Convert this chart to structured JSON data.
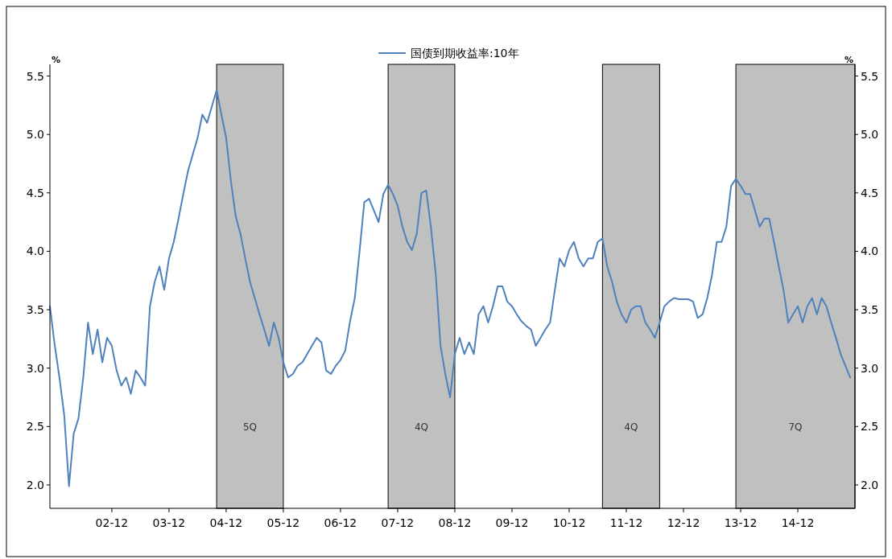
{
  "chart_data": {
    "type": "line",
    "x": [
      "2001-11",
      "2001-12",
      "2002-01",
      "2002-02",
      "2002-03",
      "2002-04",
      "2002-05",
      "2002-06",
      "2002-07",
      "2002-08",
      "2002-09",
      "2002-10",
      "2002-11",
      "2002-12",
      "2003-01",
      "2003-02",
      "2003-03",
      "2003-04",
      "2003-05",
      "2003-06",
      "2003-07",
      "2003-08",
      "2003-09",
      "2003-10",
      "2003-11",
      "2003-12",
      "2004-01",
      "2004-02",
      "2004-03",
      "2004-04",
      "2004-05",
      "2004-06",
      "2004-07",
      "2004-08",
      "2004-09",
      "2004-10",
      "2004-11",
      "2004-12",
      "2005-01",
      "2005-02",
      "2005-03",
      "2005-04",
      "2005-05",
      "2005-06",
      "2005-07",
      "2005-08",
      "2005-09",
      "2005-10",
      "2005-11",
      "2005-12",
      "2006-01",
      "2006-02",
      "2006-03",
      "2006-04",
      "2006-05",
      "2006-06",
      "2006-07",
      "2006-08",
      "2006-09",
      "2006-10",
      "2006-11",
      "2006-12",
      "2007-01",
      "2007-02",
      "2007-03",
      "2007-04",
      "2007-05",
      "2007-06",
      "2007-07",
      "2007-08",
      "2007-09",
      "2007-10",
      "2007-11",
      "2007-12",
      "2008-01",
      "2008-02",
      "2008-03",
      "2008-04",
      "2008-05",
      "2008-06",
      "2008-07",
      "2008-08",
      "2008-09",
      "2008-10",
      "2008-11",
      "2008-12",
      "2009-01",
      "2009-02",
      "2009-03",
      "2009-04",
      "2009-05",
      "2009-06",
      "2009-07",
      "2009-08",
      "2009-09",
      "2009-10",
      "2009-11",
      "2009-12",
      "2010-01",
      "2010-02",
      "2010-03",
      "2010-04",
      "2010-05",
      "2010-06",
      "2010-07",
      "2010-08",
      "2010-09",
      "2010-10",
      "2010-11",
      "2010-12",
      "2011-01",
      "2011-02",
      "2011-03",
      "2011-04",
      "2011-05",
      "2011-06",
      "2011-07",
      "2011-08",
      "2011-09",
      "2011-10",
      "2011-11",
      "2011-12",
      "2012-01",
      "2012-02",
      "2012-03",
      "2012-04",
      "2012-05",
      "2012-06",
      "2012-07",
      "2012-08",
      "2012-09",
      "2012-10",
      "2012-11",
      "2012-12",
      "2013-01",
      "2013-02",
      "2013-03",
      "2013-04",
      "2013-05",
      "2013-06",
      "2013-07",
      "2013-08",
      "2013-09",
      "2013-10",
      "2013-11",
      "2013-12",
      "2014-01",
      "2014-02",
      "2014-03",
      "2014-04",
      "2014-05",
      "2014-06",
      "2014-07",
      "2014-08",
      "2014-09",
      "2014-10",
      "2014-11",
      "2014-12",
      "2015-01",
      "2015-02",
      "2015-03",
      "2015-04",
      "2015-05",
      "2015-06",
      "2015-07",
      "2015-08",
      "2015-09",
      "2015-10",
      "2015-11"
    ],
    "series": [
      {
        "name": "国债到期收益率:10年",
        "color": "#4f81bd",
        "values": [
          3.53,
          3.2,
          2.92,
          2.6,
          1.99,
          2.44,
          2.57,
          2.92,
          3.39,
          3.12,
          3.33,
          3.05,
          3.26,
          3.19,
          2.98,
          2.85,
          2.92,
          2.78,
          2.98,
          2.92,
          2.85,
          3.53,
          3.74,
          3.87,
          3.67,
          3.94,
          4.08,
          4.28,
          4.49,
          4.69,
          4.83,
          4.97,
          5.17,
          5.1,
          5.24,
          5.38,
          5.17,
          4.97,
          4.6,
          4.3,
          4.15,
          3.94,
          3.74,
          3.6,
          3.46,
          3.33,
          3.19,
          3.39,
          3.26,
          3.05,
          2.92,
          2.95,
          3.02,
          3.05,
          3.12,
          3.19,
          3.26,
          3.22,
          2.98,
          2.95,
          3.02,
          3.07,
          3.15,
          3.4,
          3.6,
          4.0,
          4.42,
          4.45,
          4.35,
          4.25,
          4.49,
          4.57,
          4.49,
          4.39,
          4.21,
          4.08,
          4.01,
          4.15,
          4.5,
          4.52,
          4.2,
          3.8,
          3.19,
          2.95,
          2.75,
          3.12,
          3.26,
          3.12,
          3.22,
          3.12,
          3.46,
          3.53,
          3.39,
          3.53,
          3.7,
          3.7,
          3.57,
          3.53,
          3.46,
          3.4,
          3.36,
          3.33,
          3.19,
          3.26,
          3.33,
          3.39,
          3.67,
          3.94,
          3.87,
          4.01,
          4.08,
          3.94,
          3.87,
          3.94,
          3.94,
          4.08,
          4.11,
          3.87,
          3.74,
          3.57,
          3.46,
          3.39,
          3.5,
          3.53,
          3.53,
          3.39,
          3.33,
          3.26,
          3.39,
          3.53,
          3.57,
          3.6,
          3.59,
          3.59,
          3.59,
          3.57,
          3.43,
          3.46,
          3.6,
          3.8,
          4.08,
          4.08,
          4.21,
          4.56,
          4.62,
          4.56,
          4.49,
          4.49,
          4.35,
          4.21,
          4.28,
          4.28,
          4.08,
          3.87,
          3.67,
          3.39,
          3.46,
          3.53,
          3.39,
          3.53,
          3.6,
          3.46,
          3.6,
          3.53,
          3.39,
          3.26,
          3.12,
          3.02,
          2.92
        ]
      }
    ],
    "xlim": [
      "2001-11",
      "2015-12"
    ],
    "xticks": [
      {
        "value": "2002-12",
        "label": "02-12"
      },
      {
        "value": "2003-12",
        "label": "03-12"
      },
      {
        "value": "2004-12",
        "label": "04-12"
      },
      {
        "value": "2005-12",
        "label": "05-12"
      },
      {
        "value": "2006-12",
        "label": "06-12"
      },
      {
        "value": "2007-12",
        "label": "07-12"
      },
      {
        "value": "2008-12",
        "label": "08-12"
      },
      {
        "value": "2009-12",
        "label": "09-12"
      },
      {
        "value": "2010-12",
        "label": "10-12"
      },
      {
        "value": "2011-12",
        "label": "11-12"
      },
      {
        "value": "2012-12",
        "label": "12-12"
      },
      {
        "value": "2013-12",
        "label": "13-12"
      },
      {
        "value": "2014-12",
        "label": "14-12"
      }
    ],
    "ylim": [
      1.8,
      5.6
    ],
    "yticks": [
      {
        "value": 2.0,
        "label": "2.0"
      },
      {
        "value": 2.5,
        "label": "2.5"
      },
      {
        "value": 3.0,
        "label": "3.0"
      },
      {
        "value": 3.5,
        "label": "3.5"
      },
      {
        "value": 4.0,
        "label": "4.0"
      },
      {
        "value": 4.5,
        "label": "4.5"
      },
      {
        "value": 5.0,
        "label": "5.0"
      },
      {
        "value": 5.5,
        "label": "5.5"
      }
    ],
    "y2lim": [
      1.8,
      5.6
    ],
    "y2ticks": [
      {
        "value": 2.0,
        "label": "2.0"
      },
      {
        "value": 2.5,
        "label": "2.5"
      },
      {
        "value": 3.0,
        "label": "3.0"
      },
      {
        "value": 3.5,
        "label": "3.5"
      },
      {
        "value": 4.0,
        "label": "4.0"
      },
      {
        "value": 4.5,
        "label": "4.5"
      },
      {
        "value": 5.0,
        "label": "5.0"
      },
      {
        "value": 5.5,
        "label": "5.5"
      }
    ],
    "ylabel": "%",
    "y2label": "%",
    "bands": [
      {
        "axis": "x",
        "from": "2004-10",
        "to": "2005-12",
        "label": "5Q",
        "color": "#c0c0c0"
      },
      {
        "axis": "x",
        "from": "2007-10",
        "to": "2008-12",
        "label": "4Q",
        "color": "#c0c0c0"
      },
      {
        "axis": "x",
        "from": "2011-07",
        "to": "2012-07",
        "label": "4Q",
        "color": "#c0c0c0"
      },
      {
        "axis": "x",
        "from": "2013-11",
        "to": "2015-12",
        "label": "7Q",
        "color": "#c0c0c0"
      }
    ],
    "legend": "top",
    "grid": false,
    "marker": "none",
    "line_style": "solid"
  }
}
